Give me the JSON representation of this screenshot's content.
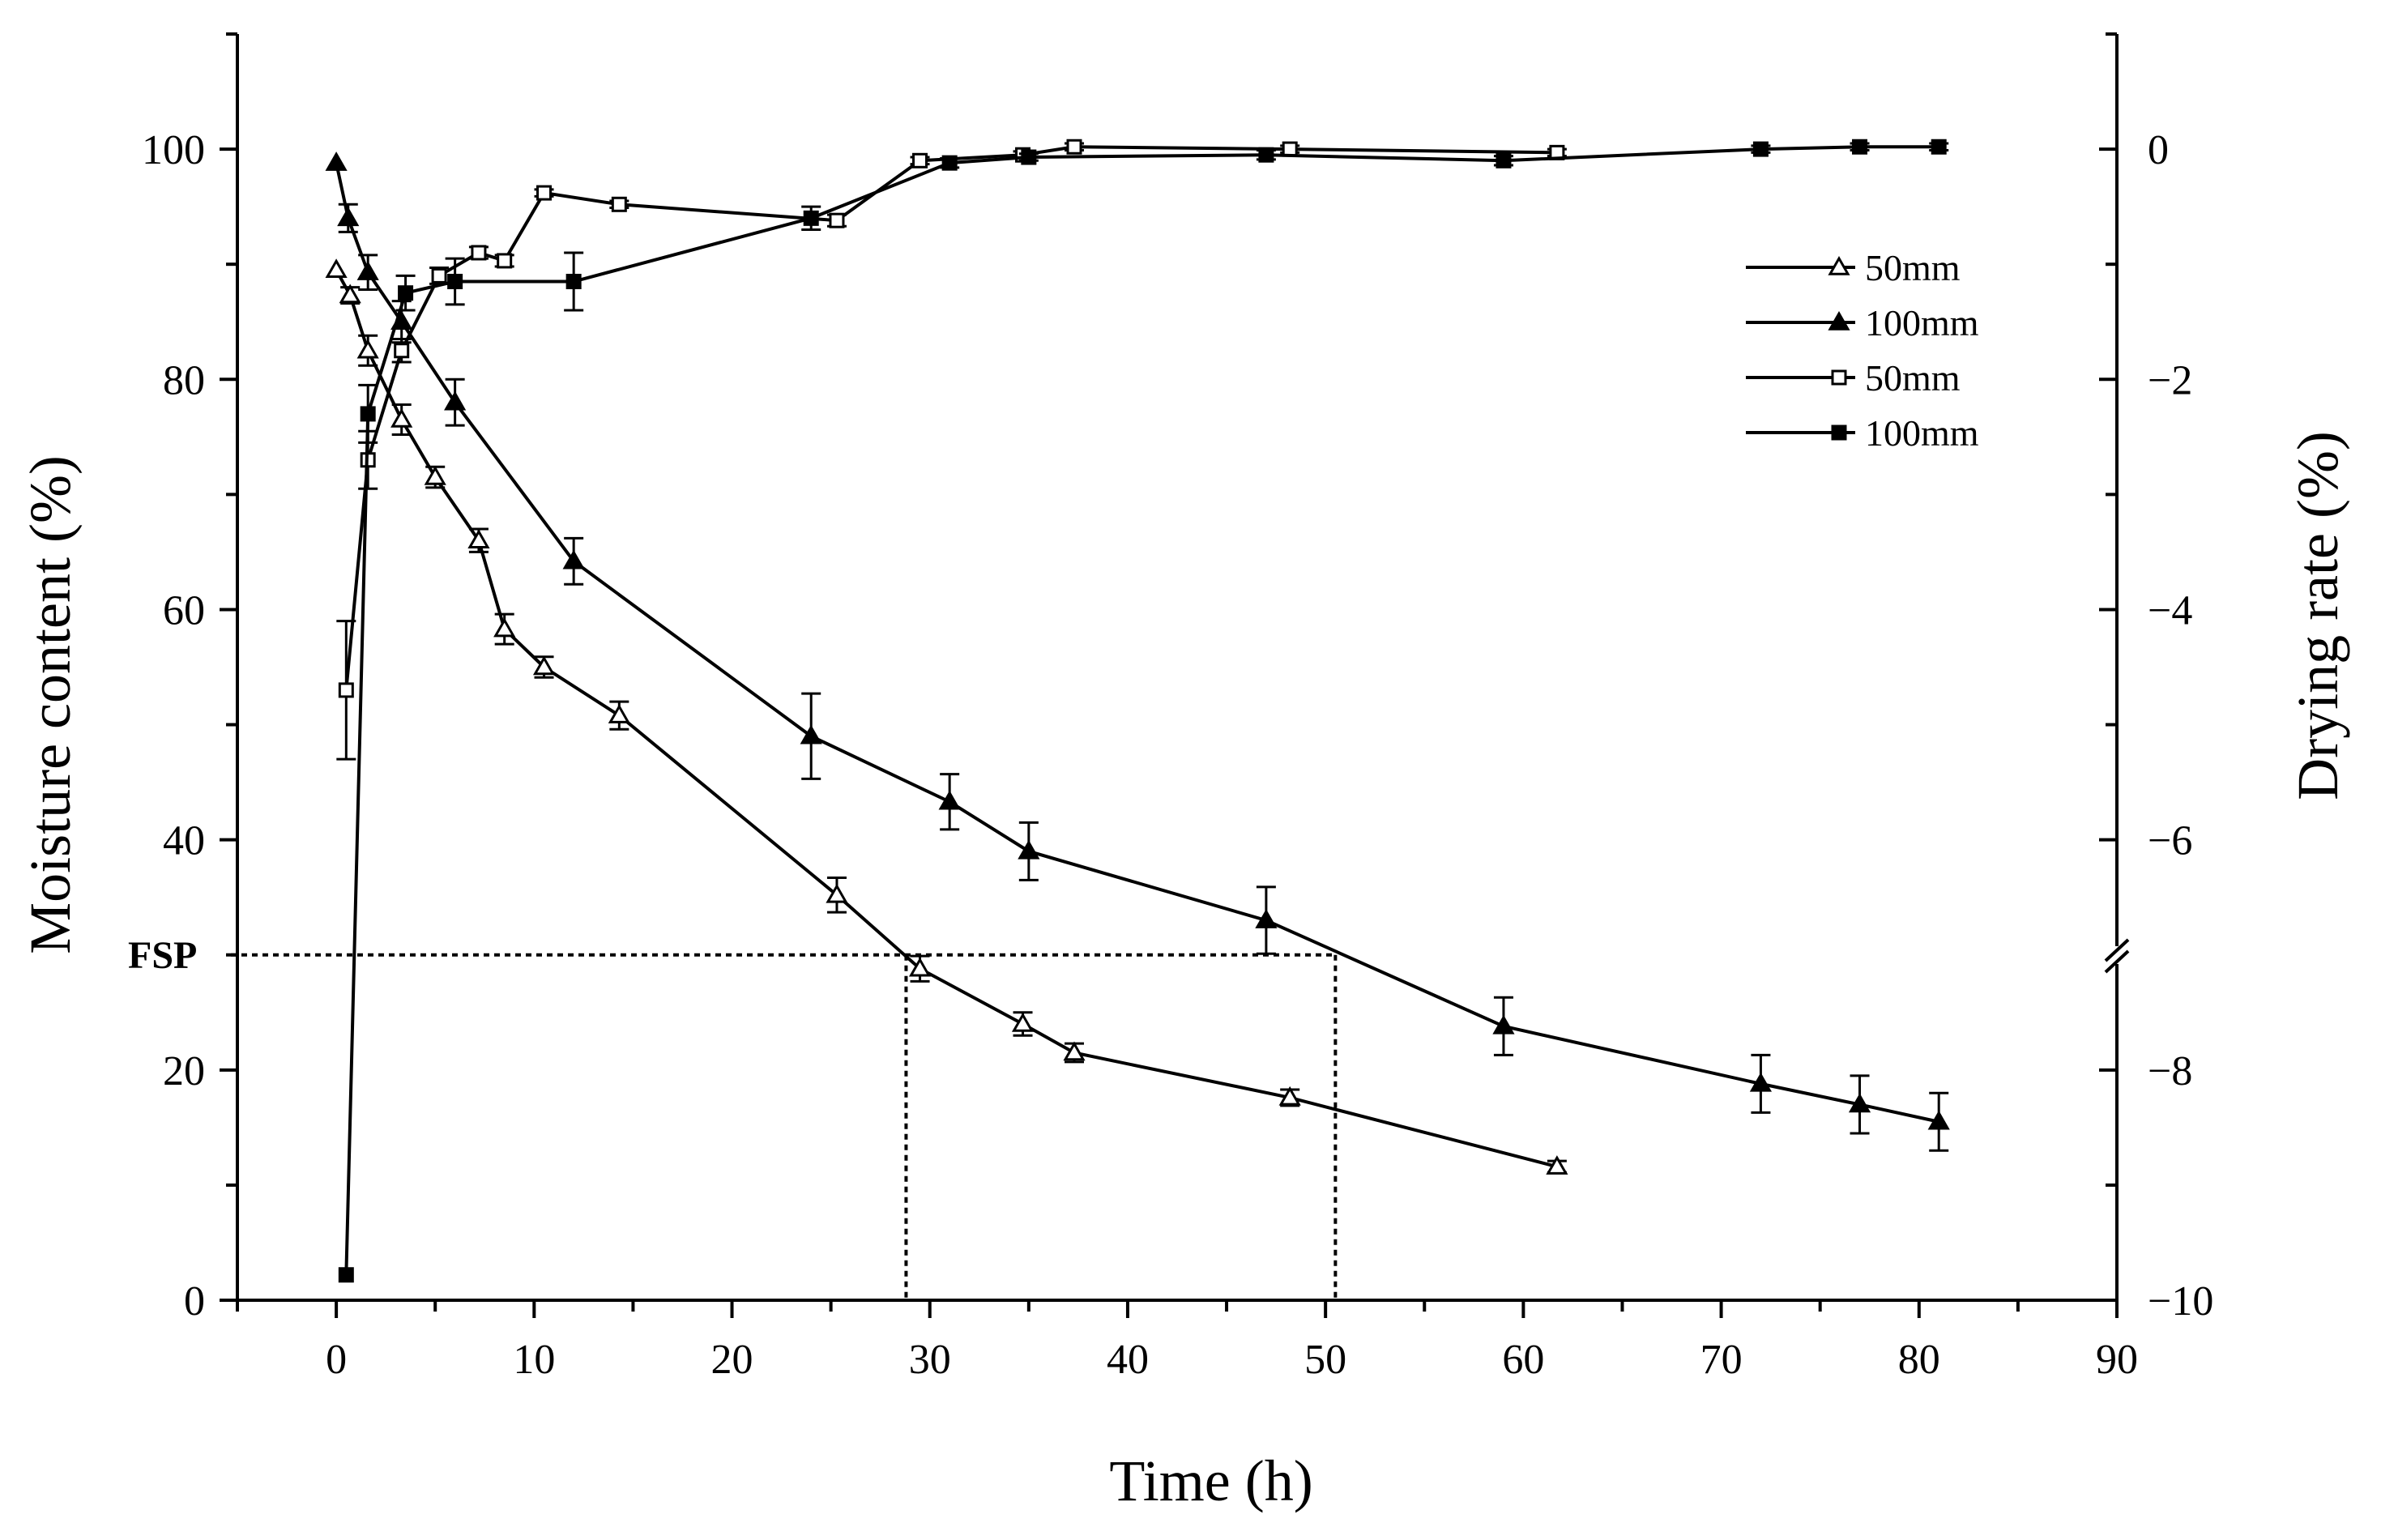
{
  "chart_data": {
    "type": "line",
    "xlabel": "Time (h)",
    "ylabel_left": "Moisture content (%)",
    "ylabel_right": "Drying rate (%)",
    "xlim": [
      -5,
      90
    ],
    "ylim_left": [
      0,
      110
    ],
    "ylim_right": [
      -10,
      1
    ],
    "x_ticks": [
      0,
      10,
      20,
      30,
      40,
      50,
      60,
      70,
      80,
      90
    ],
    "y_left_ticks": [
      0,
      20,
      40,
      60,
      80,
      100
    ],
    "y_right_ticks": [
      0,
      -2,
      -4,
      -6,
      -8,
      -10
    ],
    "y_right_tick_labels": [
      "0",
      "−2",
      "−4",
      "−6",
      "−8",
      "−10"
    ],
    "fsp": {
      "label": "FSP",
      "y": 30,
      "x_50mm": 28.8,
      "x_100mm": 50.5
    },
    "legend": {
      "position": "top-right"
    },
    "series": [
      {
        "name": "50mm",
        "axis": "left",
        "marker": "triangle-open",
        "x": [
          0,
          0.7,
          1.6,
          3.3,
          5,
          7.2,
          8.5,
          10.5,
          14.3,
          25.3,
          29.5,
          34.7,
          37.3,
          48.2,
          61.7
        ],
        "y": [
          89.5,
          87.3,
          82.5,
          76.5,
          71.5,
          66,
          58.3,
          55,
          50.8,
          35.2,
          28.8,
          24,
          21.5,
          17.6,
          11.6
        ],
        "err": [
          0,
          0.7,
          1.3,
          1.3,
          0.9,
          1.0,
          1.3,
          0.9,
          1.2,
          1.5,
          1.1,
          1.0,
          0.8,
          0.7,
          0.5
        ]
      },
      {
        "name": "100mm",
        "axis": "left",
        "marker": "triangle-filled",
        "x": [
          0,
          0.6,
          1.6,
          3.3,
          6,
          12,
          24,
          31,
          35,
          47,
          59,
          72,
          77,
          81
        ],
        "y": [
          98.8,
          94,
          89.3,
          85,
          78,
          64.2,
          49,
          43.3,
          39,
          33,
          23.8,
          18.8,
          17,
          15.5
        ],
        "err": [
          0,
          1.2,
          1.5,
          1.8,
          2.0,
          2.0,
          3.7,
          2.4,
          2.5,
          2.9,
          2.5,
          2.5,
          2.5,
          2.5
        ]
      },
      {
        "name": "50mm",
        "axis": "right",
        "marker": "square-open",
        "x": [
          0.5,
          1.6,
          3.3,
          5.2,
          7.2,
          8.5,
          10.5,
          14.3,
          25.3,
          29.5,
          34.7,
          37.3,
          48.2,
          61.7
        ],
        "y": [
          -4.7,
          -2.7,
          -1.75,
          -1.1,
          -0.9,
          -0.97,
          -0.38,
          -0.48,
          -0.62,
          -0.1,
          -0.05,
          0.02,
          0.0,
          -0.03
        ],
        "err": [
          0.6,
          0.25,
          0.1,
          0.07,
          0.05,
          0.05,
          0.03,
          0.03,
          0.05,
          0.03,
          0.03,
          0.03,
          0.03,
          0.03
        ]
      },
      {
        "name": "100mm",
        "axis": "right",
        "marker": "square-filled",
        "x": [
          0.5,
          1.6,
          3.5,
          6,
          12,
          24,
          31,
          35,
          47,
          59,
          72,
          77,
          81
        ],
        "y": [
          -9.78,
          -2.3,
          -1.25,
          -1.15,
          -1.15,
          -0.6,
          -0.12,
          -0.07,
          -0.05,
          -0.1,
          0.0,
          0.02,
          0.02
        ],
        "err": [
          0,
          0.25,
          0.15,
          0.2,
          0.25,
          0.1,
          0.04,
          0.03,
          0.04,
          0.04,
          0.03,
          0.03,
          0.03
        ]
      }
    ]
  }
}
